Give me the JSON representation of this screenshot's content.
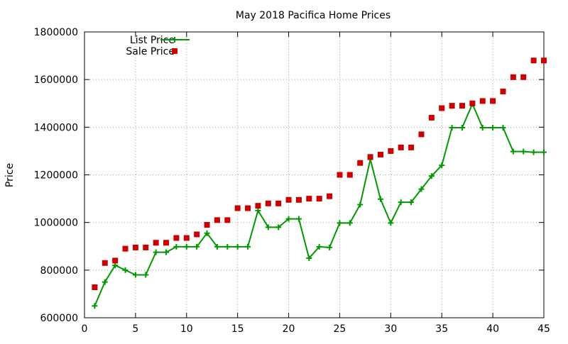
{
  "chart_data": {
    "type": "line",
    "title": "May 2018 Pacifica Home Prices",
    "xlabel": "",
    "ylabel": "Price",
    "xlim": [
      0,
      45
    ],
    "ylim": [
      600000,
      1800000
    ],
    "x_ticks": [
      0,
      5,
      10,
      15,
      20,
      25,
      30,
      35,
      40,
      45
    ],
    "y_ticks": [
      600000,
      800000,
      1000000,
      1200000,
      1400000,
      1600000,
      1800000
    ],
    "grid": true,
    "legend_position": "top-left",
    "x": [
      1,
      2,
      3,
      4,
      5,
      6,
      7,
      8,
      9,
      10,
      11,
      12,
      13,
      14,
      15,
      16,
      17,
      18,
      19,
      20,
      21,
      22,
      23,
      24,
      25,
      26,
      27,
      28,
      29,
      30,
      31,
      32,
      33,
      34,
      35,
      36,
      37,
      38,
      39,
      40,
      41,
      42,
      43,
      44,
      45
    ],
    "series": [
      {
        "name": "List Price",
        "style": "line-points",
        "color": "#009900",
        "values": [
          650000,
          750000,
          820000,
          800000,
          780000,
          780000,
          875000,
          875000,
          898000,
          898000,
          898000,
          955000,
          898000,
          898000,
          898000,
          898000,
          1050000,
          980000,
          980000,
          1015000,
          1015000,
          850000,
          898000,
          895000,
          998000,
          998000,
          1075000,
          1265000,
          1098000,
          998000,
          1085000,
          1085000,
          1140000,
          1195000,
          1240000,
          1398000,
          1398000,
          1498000,
          1398000,
          1398000,
          1398000,
          1298000,
          1298000,
          1295000,
          1295000
        ]
      },
      {
        "name": "Sale Price",
        "style": "points",
        "color": "#cc0000",
        "values": [
          728000,
          830000,
          840000,
          890000,
          895000,
          895000,
          915000,
          915000,
          935000,
          935000,
          950000,
          990000,
          1010000,
          1010000,
          1060000,
          1060000,
          1070000,
          1080000,
          1080000,
          1095000,
          1095000,
          1100000,
          1100000,
          1110000,
          1200000,
          1200000,
          1250000,
          1275000,
          1285000,
          1300000,
          1315000,
          1315000,
          1370000,
          1440000,
          1480000,
          1490000,
          1490000,
          1500000,
          1510000,
          1510000,
          1550000,
          1610000,
          1610000,
          1680000,
          1680000
        ]
      }
    ]
  }
}
